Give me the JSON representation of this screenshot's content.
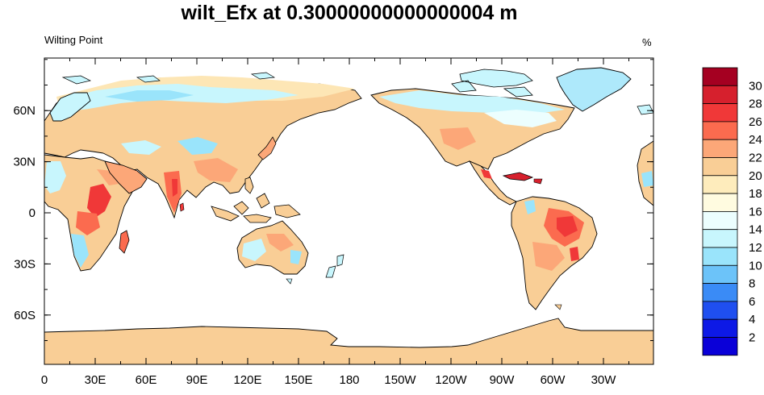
{
  "title": "wilt_Efx at 0.30000000000000004 m",
  "left_string": "Wilting Point",
  "right_string": "%",
  "map": {
    "lon_ticks": [
      "0",
      "30E",
      "60E",
      "90E",
      "120E",
      "150E",
      "180",
      "150W",
      "120W",
      "90W",
      "60W",
      "30W"
    ],
    "lat_ticks": [
      "60N",
      "30N",
      "0",
      "30S",
      "60S"
    ],
    "colors": {
      "ocean": "#ffffff",
      "antarctica": "#f9ce96",
      "greenland": "#aee9fb"
    }
  },
  "colorbar": {
    "labels": [
      "30",
      "28",
      "26",
      "24",
      "22",
      "20",
      "18",
      "16",
      "14",
      "12",
      "10",
      "8",
      "6",
      "4",
      "2"
    ],
    "colors": [
      "#a50021",
      "#d6202d",
      "#f03838",
      "#fb6b4f",
      "#fca778",
      "#f9ce96",
      "#feecbc",
      "#fffbe0",
      "#ecfefe",
      "#c8f6fd",
      "#9ae4fb",
      "#6cc3f9",
      "#3a8bf6",
      "#1f4ff0",
      "#0d19e6",
      "#0a00d8"
    ]
  }
}
